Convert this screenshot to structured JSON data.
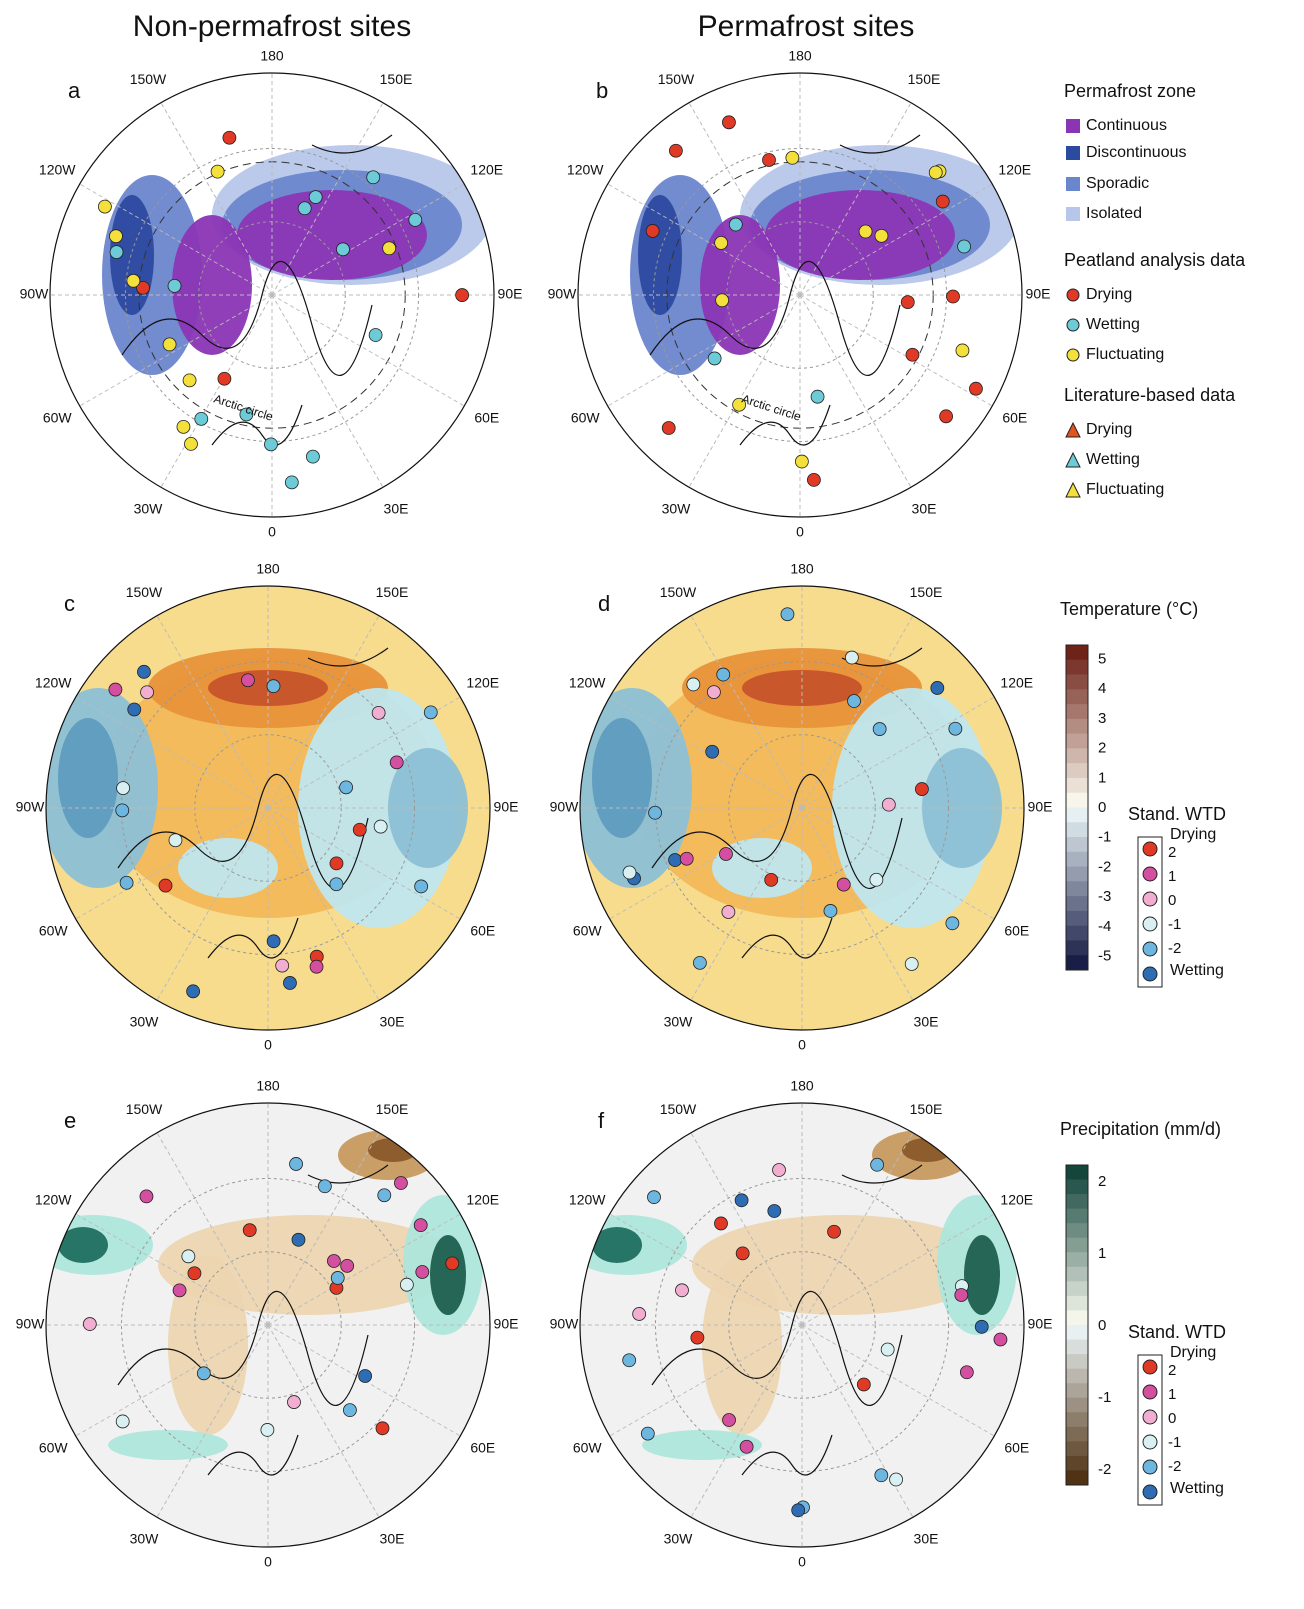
{
  "columns": [
    "Non-permafrost sites",
    "Permafrost sites"
  ],
  "panels": [
    "a",
    "b",
    "c",
    "d",
    "e",
    "f"
  ],
  "longitudes": [
    "180",
    "150E",
    "120E",
    "90E",
    "60E",
    "30E",
    "0",
    "30W",
    "60W",
    "90W",
    "120W",
    "150W"
  ],
  "arctic_circle": "Arctic circle",
  "legend_permafrost": {
    "title": "Permafrost zone",
    "items": [
      {
        "label": "Continuous",
        "color": "#8b35b5"
      },
      {
        "label": "Discontinuous",
        "color": "#2c4aa0"
      },
      {
        "label": "Sporadic",
        "color": "#6a86cc"
      },
      {
        "label": "Isolated",
        "color": "#b7c7ea"
      }
    ]
  },
  "legend_peatland": {
    "title": "Peatland analysis data",
    "items": [
      {
        "label": "Drying",
        "color": "#e03a26"
      },
      {
        "label": "Wetting",
        "color": "#6ccbd6"
      },
      {
        "label": "Fluctuating",
        "color": "#f3e03a"
      }
    ]
  },
  "legend_literature": {
    "title": "Literature-based data",
    "items": [
      {
        "label": "Drying",
        "color": "#e2541f"
      },
      {
        "label": "Wetting",
        "color": "#6ccbd6"
      },
      {
        "label": "Fluctuating",
        "color": "#f3e03a"
      }
    ]
  },
  "temperature": {
    "title": "Temperature (°C)",
    "ticks": [
      5,
      4,
      3,
      2,
      1,
      0,
      -1,
      -2,
      -3,
      -4,
      -5
    ]
  },
  "precipitation": {
    "title": "Precipitation (mm/d)",
    "ticks": [
      2,
      1,
      0,
      -1,
      -2
    ]
  },
  "wtd_temperature": {
    "title": "Stand. WTD",
    "top": "Drying",
    "bottom": "Wetting",
    "ticks": [
      2,
      1,
      0,
      -1,
      -2
    ]
  },
  "wtd_precipitation": {
    "title": "Stand. WTD",
    "top": "Drying",
    "bottom": "Wetting",
    "ticks": [
      2,
      1,
      0,
      -1,
      -2
    ]
  }
}
